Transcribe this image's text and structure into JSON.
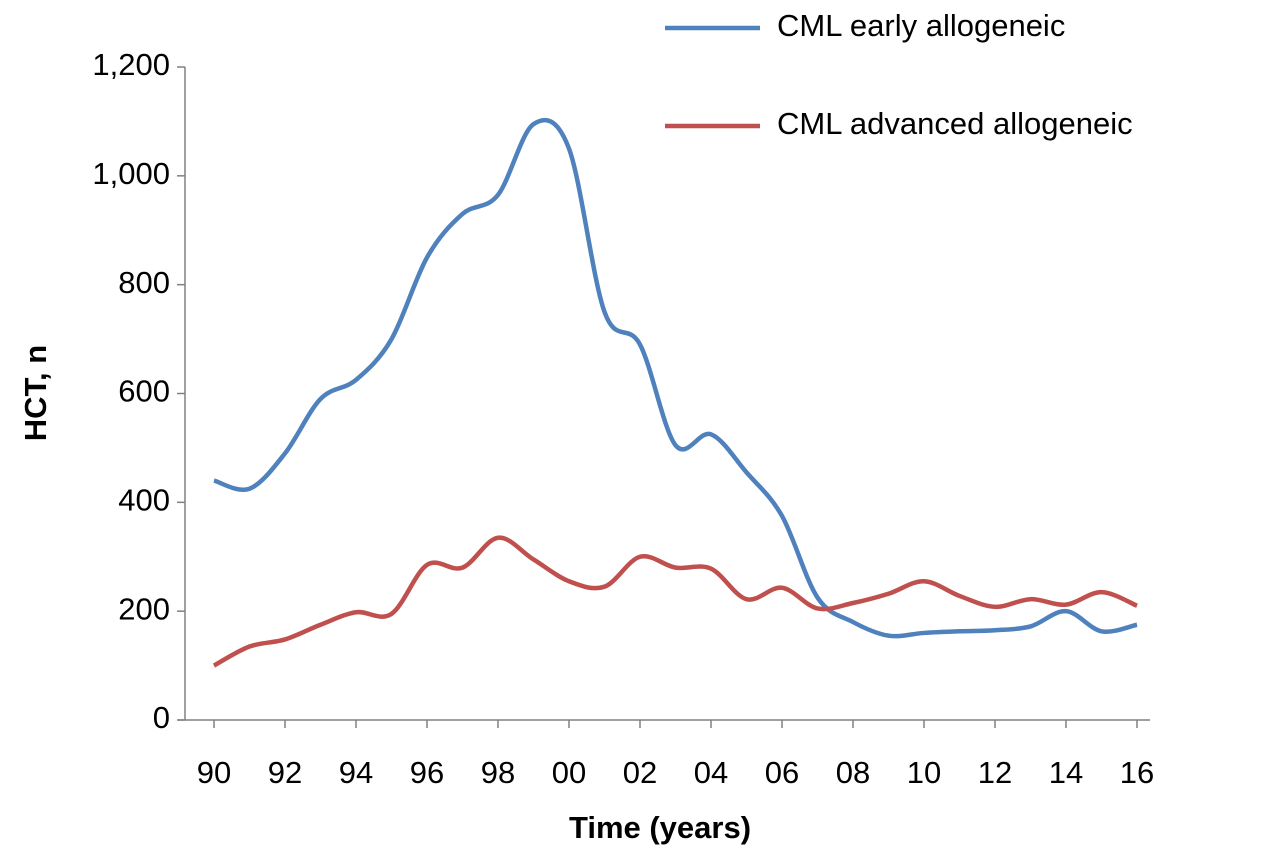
{
  "chart_data": {
    "type": "line",
    "x_label": "Time (years)",
    "y_label": "HCT, n",
    "categories": [
      "90",
      null,
      "92",
      null,
      "94",
      null,
      "96",
      null,
      "98",
      null,
      "00",
      null,
      "02",
      null,
      "04",
      null,
      "06",
      null,
      "08",
      null,
      "10",
      null,
      "12",
      null,
      "14",
      null,
      "16"
    ],
    "series": [
      {
        "name": "CML early allogeneic",
        "color": "#4f81bd",
        "values": [
          440,
          425,
          490,
          590,
          625,
          700,
          850,
          930,
          965,
          1095,
          1050,
          750,
          690,
          505,
          525,
          455,
          375,
          225,
          180,
          155,
          160,
          163,
          165,
          172,
          200,
          163,
          175
        ]
      },
      {
        "name": "CML advanced allogeneic",
        "color": "#c0504d",
        "values": [
          100,
          135,
          148,
          175,
          198,
          195,
          285,
          280,
          335,
          295,
          255,
          245,
          300,
          280,
          278,
          222,
          243,
          205,
          215,
          232,
          255,
          228,
          208,
          222,
          212,
          235,
          210
        ]
      }
    ],
    "ylim": [
      0,
      1200
    ],
    "yticks": [
      0,
      200,
      400,
      600,
      800,
      {
        "value": 1000,
        "label": "1,000"
      },
      {
        "value": 1200,
        "label": "1,200"
      }
    ],
    "legend": "top-right"
  }
}
